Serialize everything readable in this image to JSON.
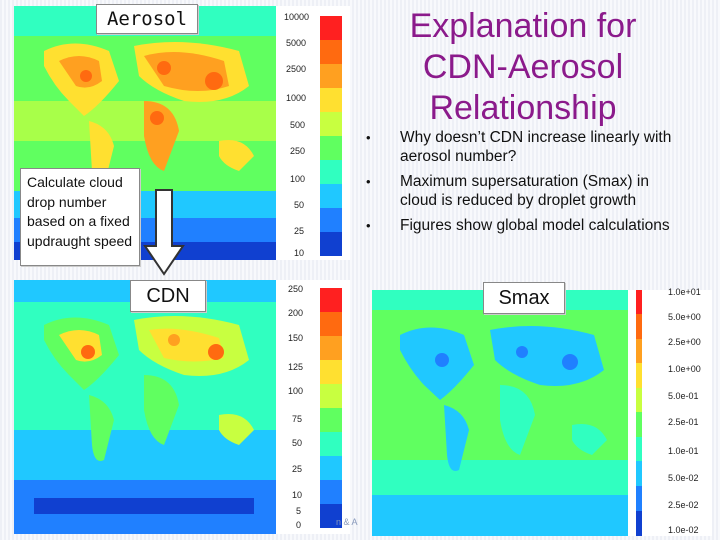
{
  "title": "Explanation for CDN-Aerosol Relationship",
  "bullets": [
    "Why doesn’t CDN increase linearly with aerosol number?",
    "Maximum supersaturation (Smax) in cloud is reduced by droplet growth",
    "Figures show global model calculations"
  ],
  "labels": {
    "aerosol": "Aerosol",
    "cdn": "CDN",
    "smax": "Smax",
    "calc_note": "Calculate cloud drop number based on a fixed updraught speed"
  },
  "footer": "n & A",
  "aerosol_colorbar": [
    "10000",
    "5000",
    "2500",
    "1000",
    "500",
    "250",
    "100",
    "50",
    "25",
    "10"
  ],
  "cdn_colorbar": [
    "250",
    "200",
    "150",
    "125",
    "100",
    "75",
    "50",
    "25",
    "10",
    "5",
    "0"
  ],
  "smax_colorbar": [
    "1.0e+01",
    "5.0e+00",
    "2.5e+00",
    "1.0e+00",
    "5.0e-01",
    "2.5e-01",
    "1.0e-01",
    "5.0e-02",
    "2.5e-02",
    "1.0e-02"
  ],
  "colors": {
    "title": "#8b1a8b",
    "scale": [
      "#ff2020",
      "#ff6a10",
      "#ffa020",
      "#ffe030",
      "#c8ff40",
      "#60ff60",
      "#30ffc0",
      "#20c8ff",
      "#2080ff",
      "#1040d0"
    ]
  }
}
